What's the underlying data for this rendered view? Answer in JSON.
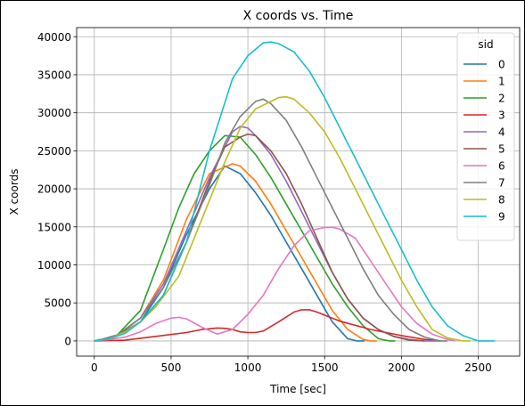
{
  "chart_data": {
    "type": "line",
    "title": "X coords vs. Time",
    "xlabel": "Time [sec]",
    "ylabel": "X coords",
    "xlim": [
      -115,
      2770
    ],
    "ylim": [
      -2000,
      41200
    ],
    "xticks": [
      0,
      500,
      1000,
      1500,
      2000,
      2500
    ],
    "yticks": [
      0,
      5000,
      10000,
      15000,
      20000,
      25000,
      30000,
      35000,
      40000
    ],
    "grid": true,
    "legend": {
      "title": "sid",
      "placement": "top-right"
    },
    "series": [
      {
        "name": "0",
        "color": "#1f77b4",
        "x": [
          0,
          50,
          150,
          300,
          450,
          600,
          750,
          850,
          950,
          1050,
          1150,
          1250,
          1350,
          1450,
          1550,
          1650,
          1710,
          1760
        ],
        "y": [
          0,
          200,
          700,
          2500,
          7000,
          14000,
          20000,
          23000,
          22000,
          19500,
          16500,
          13000,
          9500,
          6000,
          2500,
          300,
          0,
          0
        ]
      },
      {
        "name": "1",
        "color": "#ff7f0e",
        "x": [
          0,
          50,
          150,
          300,
          450,
          600,
          750,
          900,
          950,
          1050,
          1150,
          1250,
          1350,
          1450,
          1550,
          1650,
          1750,
          1800,
          1840
        ],
        "y": [
          0,
          200,
          700,
          3000,
          8000,
          16000,
          22000,
          23300,
          23000,
          21000,
          18000,
          14500,
          11000,
          7500,
          4000,
          1500,
          200,
          0,
          0
        ]
      },
      {
        "name": "2",
        "color": "#2ca02c",
        "x": [
          0,
          50,
          150,
          300,
          450,
          550,
          650,
          750,
          850,
          950,
          1050,
          1150,
          1250,
          1350,
          1450,
          1550,
          1650,
          1750,
          1850,
          1920,
          1960
        ],
        "y": [
          0,
          200,
          800,
          4000,
          12000,
          17500,
          22000,
          25000,
          27000,
          26800,
          24500,
          21500,
          18000,
          14500,
          11000,
          7500,
          4500,
          2000,
          300,
          0,
          0
        ]
      },
      {
        "name": "3",
        "color": "#d62728",
        "x": [
          0,
          200,
          400,
          600,
          700,
          800,
          850,
          900,
          950,
          1000,
          1050,
          1100,
          1200,
          1300,
          1350,
          1400,
          1450,
          1600,
          1800,
          2000,
          2150,
          2250
        ],
        "y": [
          0,
          100,
          600,
          1100,
          1500,
          1700,
          1650,
          1500,
          1200,
          1100,
          1100,
          1300,
          2500,
          3800,
          4100,
          4100,
          3800,
          2600,
          1500,
          700,
          200,
          0
        ]
      },
      {
        "name": "4",
        "color": "#9467bd",
        "x": [
          0,
          50,
          150,
          300,
          450,
          600,
          750,
          850,
          900,
          950,
          1000,
          1050,
          1150,
          1250,
          1350,
          1450,
          1550,
          1650,
          1750,
          1850,
          1950,
          2050,
          2150,
          2200,
          2250
        ],
        "y": [
          0,
          200,
          700,
          3000,
          7500,
          14500,
          21500,
          25500,
          27500,
          28200,
          28000,
          27000,
          24500,
          21000,
          17000,
          13000,
          9000,
          5500,
          3000,
          1500,
          600,
          200,
          0,
          0,
          0
        ]
      },
      {
        "name": "5",
        "color": "#8c564b",
        "x": [
          0,
          50,
          150,
          300,
          450,
          600,
          750,
          850,
          950,
          1000,
          1050,
          1150,
          1250,
          1350,
          1450,
          1550,
          1650,
          1750,
          1850,
          1950,
          2050,
          2150
        ],
        "y": [
          0,
          200,
          700,
          2500,
          6000,
          13000,
          21000,
          25500,
          26800,
          27200,
          27000,
          25000,
          22000,
          18000,
          13500,
          9000,
          5500,
          3000,
          1500,
          600,
          100,
          0
        ]
      },
      {
        "name": "6",
        "color": "#e377c2",
        "x": [
          0,
          100,
          200,
          300,
          400,
          500,
          550,
          600,
          700,
          800,
          900,
          950,
          1000,
          1100,
          1200,
          1300,
          1400,
          1500,
          1550,
          1600,
          1700,
          1800,
          1900,
          2000,
          2100,
          2200,
          2300,
          2350
        ],
        "y": [
          0,
          200,
          500,
          1200,
          2300,
          3000,
          3100,
          2900,
          1800,
          900,
          1500,
          2500,
          3500,
          6000,
          9500,
          12500,
          14500,
          14900,
          14950,
          14700,
          13500,
          10500,
          7500,
          4500,
          2300,
          900,
          200,
          0
        ]
      },
      {
        "name": "7",
        "color": "#7f7f7f",
        "x": [
          0,
          50,
          150,
          300,
          450,
          600,
          750,
          850,
          950,
          1050,
          1100,
          1150,
          1250,
          1350,
          1450,
          1550,
          1650,
          1750,
          1850,
          1950,
          2050,
          2150,
          2250,
          2300
        ],
        "y": [
          0,
          200,
          800,
          3000,
          7000,
          13000,
          20500,
          26000,
          29500,
          31500,
          31800,
          31200,
          29000,
          25500,
          21500,
          17500,
          13500,
          9500,
          6000,
          3500,
          1500,
          500,
          0,
          0
        ]
      },
      {
        "name": "8",
        "color": "#bcbd22",
        "x": [
          0,
          100,
          200,
          300,
          400,
          550,
          700,
          850,
          950,
          1050,
          1150,
          1200,
          1250,
          1300,
          1400,
          1500,
          1600,
          1700,
          1800,
          1900,
          2000,
          2100,
          2200,
          2300,
          2400,
          2450
        ],
        "y": [
          0,
          300,
          1200,
          2500,
          4500,
          8500,
          16000,
          23500,
          28000,
          30500,
          31500,
          32000,
          32100,
          31800,
          30000,
          27500,
          24000,
          20000,
          16000,
          12000,
          8000,
          4500,
          1500,
          400,
          0,
          0
        ]
      },
      {
        "name": "9",
        "color": "#17becf",
        "x": [
          0,
          100,
          200,
          300,
          450,
          600,
          750,
          900,
          1000,
          1100,
          1150,
          1200,
          1300,
          1400,
          1500,
          1600,
          1700,
          1800,
          1900,
          2000,
          2100,
          2200,
          2300,
          2400,
          2500,
          2560,
          2610
        ],
        "y": [
          0,
          300,
          1000,
          2500,
          6000,
          13000,
          25000,
          34500,
          37500,
          39200,
          39300,
          39100,
          38000,
          35500,
          32000,
          28000,
          24000,
          20000,
          16000,
          12000,
          8000,
          4500,
          2000,
          700,
          0,
          0,
          0
        ]
      }
    ]
  }
}
